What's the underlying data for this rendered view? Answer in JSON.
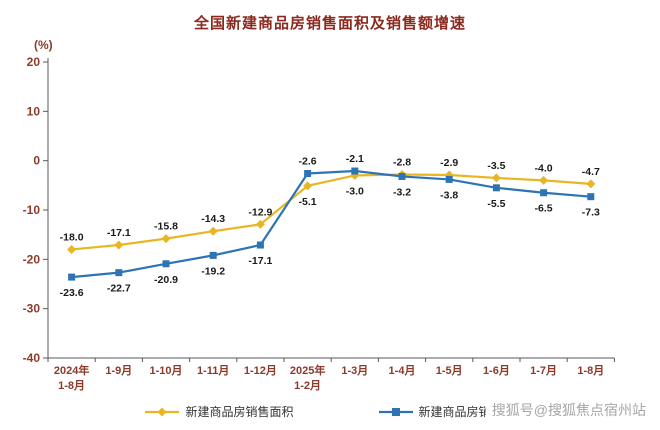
{
  "page": {
    "title": "全国新建商品房销售面积及销售额增速",
    "y_axis_unit": "(%)",
    "watermark": "搜狐号@搜狐焦点宿州站"
  },
  "colors": {
    "title": "#8b2a1f",
    "axis_text": "#8b3a2a",
    "axis_line": "#595959",
    "data_label": "#1a1a1a",
    "watermark": "#a6a6a6"
  },
  "chart_data": {
    "type": "line",
    "title": "全国新建商品房销售面积及销售额增速",
    "xlabel": "",
    "ylabel": "(%)",
    "ylim": [
      -40,
      20
    ],
    "yticks": [
      20,
      10,
      0,
      -10,
      -20,
      -30,
      -40
    ],
    "grid": false,
    "legend_position": "bottom",
    "categories": [
      [
        "2024年",
        "1-8月"
      ],
      [
        "1-9月"
      ],
      [
        "1-10月"
      ],
      [
        "1-11月"
      ],
      [
        "1-12月"
      ],
      [
        "2025年",
        "1-2月"
      ],
      [
        "1-3月"
      ],
      [
        "1-4月"
      ],
      [
        "1-5月"
      ],
      [
        "1-6月"
      ],
      [
        "1-7月"
      ],
      [
        "1-8月"
      ]
    ],
    "series": [
      {
        "name": "新建商品房销售面积",
        "color": "#e9b623",
        "marker": "diamond",
        "values": [
          -18.0,
          -17.1,
          -15.8,
          -14.3,
          -12.9,
          -5.1,
          -3.0,
          -2.8,
          -2.9,
          -3.5,
          -4.0,
          -4.7
        ]
      },
      {
        "name": "新建商品房销售额",
        "color": "#2e74b5",
        "marker": "square",
        "values": [
          -23.6,
          -22.7,
          -20.9,
          -19.2,
          -17.1,
          -2.6,
          -2.1,
          -3.2,
          -3.8,
          -5.5,
          -6.5,
          -7.3
        ]
      }
    ]
  }
}
